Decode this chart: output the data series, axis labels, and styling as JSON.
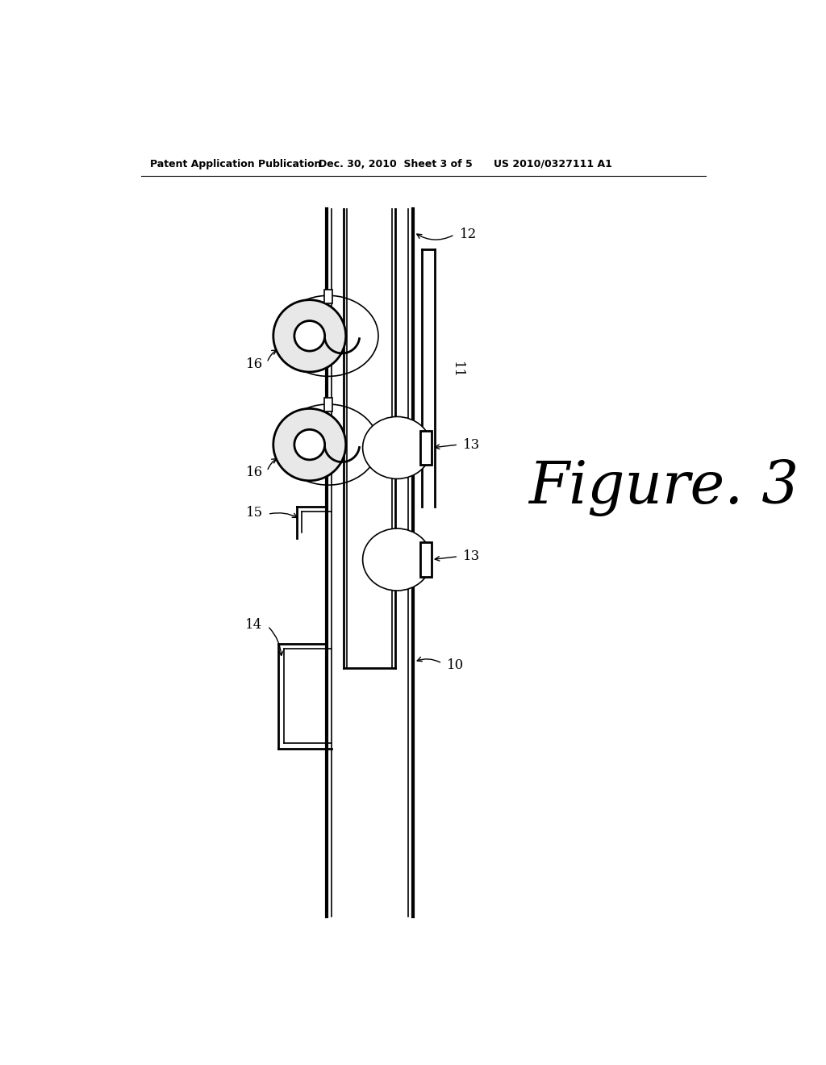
{
  "bg_color": "#ffffff",
  "header_left": "Patent Application Publication",
  "header_mid": "Dec. 30, 2010  Sheet 3 of 5",
  "header_right": "US 2010/0327111 A1",
  "figure_label": "Figure. 3"
}
